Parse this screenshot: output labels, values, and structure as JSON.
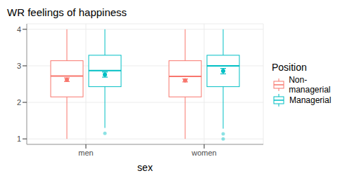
{
  "chart_data": {
    "type": "boxplot",
    "title": "WR feelings of happiness",
    "x_label": "sex",
    "legend_title": "Position",
    "legend": "right",
    "grid": true,
    "categories": [
      "men",
      "women"
    ],
    "ylim": [
      0.85,
      4.15
    ],
    "yticks": [
      1,
      2,
      3,
      4
    ],
    "series": [
      {
        "name": "Non-managerial",
        "color": "#F8766D",
        "whisker_low": [
          1,
          1
        ],
        "q1": [
          2.15,
          2.15
        ],
        "median": [
          2.72,
          2.71
        ],
        "q3": [
          3.14,
          3.14
        ],
        "whisker_high": [
          4,
          4
        ],
        "mean": [
          2.62,
          2.6
        ],
        "mean_error_low": [
          2.57,
          2.56
        ],
        "mean_error_high": [
          2.67,
          2.64
        ],
        "outliers": [
          [],
          []
        ]
      },
      {
        "name": "Managerial",
        "color": "#00BFC4",
        "whisker_low": [
          1.3,
          1.28
        ],
        "q1": [
          2.43,
          2.43
        ],
        "median": [
          2.87,
          3.0
        ],
        "q3": [
          3.29,
          3.29
        ],
        "whisker_high": [
          4,
          4
        ],
        "mean": [
          2.76,
          2.86
        ],
        "mean_error_low": [
          2.69,
          2.78
        ],
        "mean_error_high": [
          2.83,
          2.93
        ],
        "outliers": [
          [
            1.15
          ],
          [
            1.14,
            1.0
          ]
        ]
      }
    ]
  }
}
